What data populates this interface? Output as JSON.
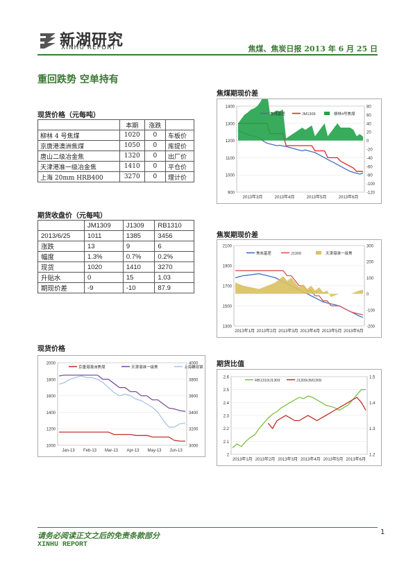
{
  "header": {
    "logo_cn": "新湖研究",
    "logo_en": "XINHU REPORT",
    "report_title": "焦煤、焦炭日报 2013 年 6 月 25 日"
  },
  "headline": "重回跌势 空单持有",
  "spot_table": {
    "title": "现货价格（元每吨）",
    "headers": [
      "",
      "本期",
      "涨跌",
      ""
    ],
    "rows": [
      [
        "柳林 4 号焦煤",
        "1020",
        "0",
        "车板价"
      ],
      [
        "京唐港澳洲焦煤",
        "1050",
        "0",
        "库提价"
      ],
      [
        "唐山二级冶金焦",
        "1320",
        "0",
        "出厂价"
      ],
      [
        "天津港准一级冶金焦",
        "1410",
        "0",
        "平仓价"
      ],
      [
        "上海 20mm HRB400",
        "3270",
        "0",
        "理计价"
      ]
    ]
  },
  "futures_table": {
    "title": "期货收盘价（元每吨）",
    "headers": [
      "",
      "JM1309",
      "J1309",
      "RB1310"
    ],
    "rows": [
      [
        "2013/6/25",
        "1011",
        "1385",
        "3456"
      ],
      [
        "涨跌",
        "13",
        "9",
        "6"
      ],
      [
        "幅度",
        "1.3%",
        "0.7%",
        "0.2%"
      ],
      [
        "现货",
        "1020",
        "1410",
        "3270"
      ],
      [
        "升贴水",
        "0",
        "15",
        "1.03"
      ],
      [
        "期现价差",
        "-9",
        "-10",
        "87.9"
      ]
    ]
  },
  "section_titles": {
    "coking_coal_basis": "焦煤期现价差",
    "coke_basis": "焦炭期现价差",
    "spot_price": "现货价格",
    "futures_ratio": "期货比值"
  },
  "footer": {
    "disclaimer": "请务必阅读正文之后的免责条款部分",
    "brand": "XINHU REPORT",
    "page_number": "1"
  },
  "colors": {
    "accent_green": "#3a7a33",
    "bar_blue": "#3d6fbf",
    "line_red": "#e0211d",
    "line_green": "#22a24a"
  },
  "chart_data": [
    {
      "type": "line",
      "name": "coking-coal-basis",
      "x_ticks": [
        "2013年3月",
        "2013年4月",
        "2013年5月",
        "2013年6月"
      ],
      "legend": [
        "焦煤基差",
        "JM1309",
        "柳林4号焦煤"
      ],
      "ylim_left": [
        900,
        1400
      ],
      "yticks_left": [
        900,
        1000,
        1100,
        1200,
        1300,
        1400
      ],
      "ylim_right": [
        -120,
        80
      ],
      "yticks_right": [
        -120,
        -100,
        -80,
        -60,
        -40,
        -20,
        0,
        20,
        40,
        60,
        80
      ],
      "series": [
        {
          "name": "JM1309",
          "axis": "left",
          "values": [
            1260,
            1250,
            1240,
            1235,
            1228,
            1225,
            1220,
            1210,
            1195,
            1185,
            1180,
            1175,
            1170,
            1172,
            1168,
            1165,
            1160,
            1155,
            1150,
            1145,
            1140,
            1145,
            1140,
            1135,
            1130,
            1120,
            1110,
            1100,
            1090,
            1080,
            1070,
            1060,
            1050,
            1040,
            1030,
            1020,
            1015,
            1010,
            1005,
            1011
          ]
        },
        {
          "name": "柳林4号焦煤",
          "axis": "left",
          "values": [
            1300,
            1300,
            1300,
            1300,
            1300,
            1300,
            1300,
            1300,
            1300,
            1300,
            1240,
            1240,
            1240,
            1240,
            1240,
            1170,
            1170,
            1170,
            1170,
            1170,
            1170,
            1170,
            1170,
            1170,
            1140,
            1140,
            1140,
            1140,
            1100,
            1100,
            1100,
            1100,
            1080,
            1070,
            1060,
            1050,
            1040,
            1020,
            1020,
            1020
          ]
        },
        {
          "name": "焦煤基差",
          "axis": "right",
          "values": [
            40,
            50,
            60,
            65,
            72,
            75,
            80,
            90,
            105,
            115,
            60,
            65,
            70,
            68,
            72,
            5,
            10,
            15,
            20,
            25,
            30,
            25,
            30,
            35,
            10,
            20,
            30,
            40,
            10,
            20,
            30,
            40,
            30,
            30,
            30,
            30,
            25,
            10,
            15,
            9
          ]
        }
      ]
    },
    {
      "type": "line",
      "name": "coke-basis",
      "x_ticks": [
        "2013年1月",
        "2013年2月",
        "2013年3月",
        "2013年4月",
        "2013年5月",
        "2013年6月"
      ],
      "legend": [
        "焦炭基差",
        "J1309",
        "天津港准一级焦"
      ],
      "ylim_left": [
        1300,
        2100
      ],
      "yticks_left": [
        1300,
        1500,
        1700,
        1900,
        2100
      ],
      "ylim_right": [
        -200,
        300
      ],
      "yticks_right": [
        -200,
        -100,
        0,
        100,
        200,
        300
      ],
      "series": [
        {
          "name": "J1309",
          "axis": "left",
          "values": [
            1780,
            1790,
            1800,
            1805,
            1810,
            1815,
            1820,
            1810,
            1800,
            1790,
            1780,
            1760,
            1740,
            1720,
            1700,
            1680,
            1660,
            1640,
            1620,
            1600,
            1580,
            1560,
            1540,
            1530,
            1520,
            1510,
            1500,
            1480,
            1460,
            1440,
            1420,
            1400,
            1385
          ]
        },
        {
          "name": "天津港准一级焦",
          "axis": "left",
          "values": [
            1850,
            1850,
            1850,
            1850,
            1850,
            1850,
            1850,
            1850,
            1850,
            1850,
            1850,
            1850,
            1850,
            1800,
            1800,
            1750,
            1700,
            1700,
            1650,
            1650,
            1600,
            1600,
            1550,
            1550,
            1500,
            1500,
            1500,
            1480,
            1460,
            1440,
            1430,
            1420,
            1410
          ]
        },
        {
          "name": "焦炭基差",
          "axis": "right",
          "values": [
            70,
            60,
            50,
            45,
            40,
            35,
            30,
            40,
            50,
            60,
            70,
            90,
            110,
            80,
            100,
            70,
            40,
            60,
            30,
            50,
            20,
            40,
            10,
            20,
            -20,
            -10,
            0,
            0,
            0,
            0,
            10,
            20,
            25
          ]
        }
      ]
    },
    {
      "type": "line",
      "name": "spot-price",
      "x_ticks": [
        "Jan-13",
        "Feb-13",
        "Mar-13",
        "Apr-13",
        "May-13",
        "Jun-13"
      ],
      "legend": [
        "京唐港澳洲焦煤",
        "天津港准一级焦",
        "上海螺纹钢"
      ],
      "ylim_left": [
        1000,
        2000
      ],
      "yticks_left": [
        1000,
        1200,
        1400,
        1600,
        1800,
        2000
      ],
      "ylim_right": [
        3000,
        4000
      ],
      "yticks_right": [
        3000,
        3200,
        3400,
        3600,
        3800,
        4000
      ],
      "series": [
        {
          "name": "京唐港澳洲焦煤",
          "axis": "left",
          "values": [
            1160,
            1160,
            1160,
            1160,
            1160,
            1160,
            1160,
            1160,
            1160,
            1160,
            1130,
            1130,
            1130,
            1130,
            1120,
            1120,
            1120,
            1100,
            1100,
            1100,
            1100,
            1060,
            1050,
            1050
          ]
        },
        {
          "name": "天津港准一级焦",
          "axis": "left",
          "values": [
            1840,
            1850,
            1850,
            1850,
            1850,
            1850,
            1850,
            1850,
            1800,
            1800,
            1750,
            1700,
            1700,
            1650,
            1650,
            1600,
            1600,
            1550,
            1550,
            1500,
            1450,
            1440,
            1420,
            1410
          ]
        },
        {
          "name": "上海螺纹钢",
          "axis": "right",
          "values": [
            3740,
            3760,
            3800,
            3820,
            3840,
            3820,
            3820,
            3800,
            3760,
            3700,
            3640,
            3600,
            3620,
            3600,
            3560,
            3540,
            3500,
            3460,
            3400,
            3300,
            3220,
            3220,
            3260,
            3270
          ]
        }
      ]
    },
    {
      "type": "line",
      "name": "futures-ratio",
      "x_ticks": [
        "2013年1月",
        "2013年2月",
        "2013年3月",
        "2013年4月",
        "2013年5月",
        "2013年6月"
      ],
      "legend": [
        "RB1310/J1309",
        "J1309/JM1309"
      ],
      "ylim_left": [
        2.0,
        2.6
      ],
      "yticks_left": [
        2,
        2.1,
        2.2,
        2.3,
        2.4,
        2.5,
        2.6
      ],
      "ylim_right": [
        1.2,
        1.5
      ],
      "yticks_right": [
        1.2,
        1.3,
        1.4,
        1.5
      ],
      "series": [
        {
          "name": "RB1310/J1309",
          "axis": "left",
          "values": [
            2.05,
            2.08,
            2.06,
            2.1,
            2.13,
            2.15,
            2.2,
            2.24,
            2.28,
            2.31,
            2.33,
            2.36,
            2.38,
            2.4,
            2.42,
            2.44,
            2.43,
            2.45,
            2.44,
            2.42,
            2.4,
            2.38,
            2.37,
            2.36,
            2.34,
            2.36,
            2.38,
            2.42,
            2.46,
            2.5,
            2.5
          ]
        },
        {
          "name": "J1309/JM1309",
          "axis": "right",
          "values": [
            null,
            null,
            null,
            null,
            null,
            null,
            null,
            null,
            1.32,
            1.3,
            1.33,
            1.34,
            1.35,
            1.34,
            1.33,
            1.33,
            1.34,
            1.35,
            1.34,
            1.33,
            1.34,
            1.35,
            1.36,
            1.37,
            1.38,
            1.39,
            1.4,
            1.41,
            1.42,
            1.4,
            1.37
          ]
        }
      ]
    }
  ]
}
